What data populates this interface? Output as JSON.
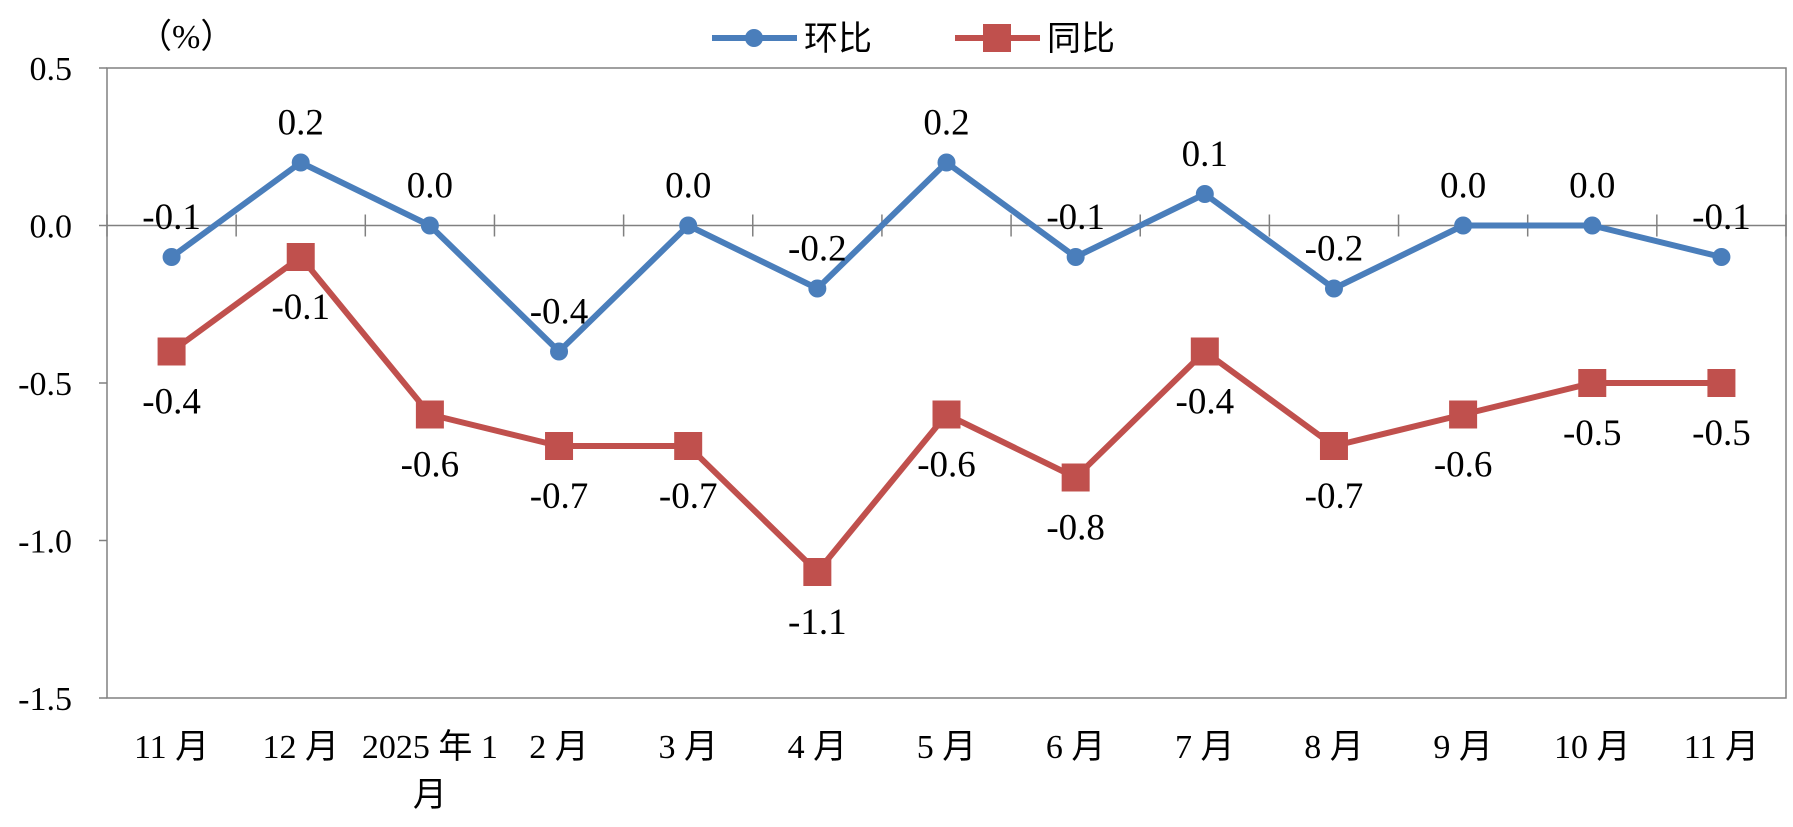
{
  "chart_data": {
    "type": "line",
    "y_unit_label": "（%）",
    "categories": [
      "11月",
      "12月",
      "2025年1月",
      "2月",
      "3月",
      "4月",
      "5月",
      "6月",
      "7月",
      "8月",
      "9月",
      "10月",
      "11月"
    ],
    "category_label_lines": [
      [
        "11 月"
      ],
      [
        "12 月"
      ],
      [
        "2025 年 1",
        "月"
      ],
      [
        "2 月"
      ],
      [
        "3 月"
      ],
      [
        "4 月"
      ],
      [
        "5 月"
      ],
      [
        "6 月"
      ],
      [
        "7 月"
      ],
      [
        "8 月"
      ],
      [
        "9 月"
      ],
      [
        "10 月"
      ],
      [
        "11 月"
      ]
    ],
    "ylim": [
      -1.5,
      0.5
    ],
    "yticks": [
      0.5,
      0.0,
      -0.5,
      -1.0,
      -1.5
    ],
    "ytick_labels": [
      "0.5",
      "0.0",
      "-0.5",
      "-1.0",
      "-1.5"
    ],
    "legend_position": "top-center",
    "grid": false,
    "series": [
      {
        "name": "环比",
        "color": "#4a7ebb",
        "marker": "circle",
        "values": [
          -0.1,
          0.2,
          0.0,
          -0.4,
          0.0,
          -0.2,
          0.2,
          -0.1,
          0.1,
          -0.2,
          0.0,
          0.0,
          -0.1
        ],
        "labels": [
          "-0.1",
          "0.2",
          "0.0",
          "-0.4",
          "0.0",
          "-0.2",
          "0.2",
          "-0.1",
          "0.1",
          "-0.2",
          "0.0",
          "0.0",
          "-0.1"
        ]
      },
      {
        "name": "同比",
        "color": "#c0504d",
        "marker": "square",
        "values": [
          -0.4,
          -0.1,
          -0.6,
          -0.7,
          -0.7,
          -1.1,
          -0.6,
          -0.8,
          -0.4,
          -0.7,
          -0.6,
          -0.5,
          -0.5
        ],
        "labels": [
          "-0.4",
          "-0.1",
          "-0.6",
          "-0.7",
          "-0.7",
          "-1.1",
          "-0.6",
          "-0.8",
          "-0.4",
          "-0.7",
          "-0.6",
          "-0.5",
          "-0.5"
        ]
      }
    ]
  }
}
